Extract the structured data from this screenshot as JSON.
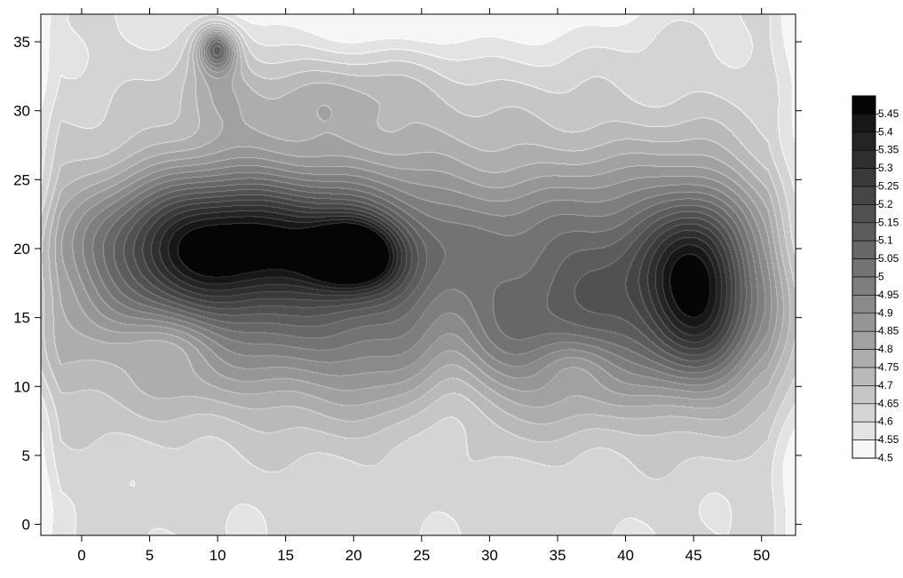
{
  "chart_data": {
    "type": "heatmap",
    "subtype": "filled-contour",
    "title": "",
    "xlabel": "",
    "ylabel": "",
    "xlim": [
      -3,
      52.5
    ],
    "ylim": [
      -0.8,
      37
    ],
    "x_ticks": [
      0,
      5,
      10,
      15,
      20,
      25,
      30,
      35,
      40,
      45,
      50
    ],
    "y_ticks": [
      0,
      5,
      10,
      15,
      20,
      25,
      30,
      35
    ],
    "x_tick_labels": [
      "0",
      "5",
      "10",
      "15",
      "20",
      "25",
      "30",
      "35",
      "40",
      "45",
      "50"
    ],
    "y_tick_labels": [
      "0",
      "5",
      "10",
      "15",
      "20",
      "25",
      "30",
      "35"
    ],
    "colormap": "grayscale (white = low, black = high)",
    "grid": false,
    "colorbar": {
      "position": "right",
      "levels": [
        5.45,
        5.4,
        5.35,
        5.3,
        5.25,
        5.2,
        5.15,
        5.1,
        5.05,
        5,
        4.95,
        4.9,
        4.85,
        4.8,
        4.75,
        4.7,
        4.65,
        4.6,
        4.55,
        4.5
      ],
      "labels": [
        "5.45",
        "5.4",
        "5.35",
        "5.3",
        "5.25",
        "5.2",
        "5.15",
        "5.1",
        "5.05",
        "5",
        "4.95",
        "4.9",
        "4.85",
        "4.8",
        "4.75",
        "4.7",
        "4.65",
        "4.6",
        "4.55",
        "4.5"
      ],
      "colors": [
        "#050505",
        "#171717",
        "#242424",
        "#2f2f2f",
        "#3a3a3a",
        "#454545",
        "#515151",
        "#5c5c5c",
        "#676767",
        "#737373",
        "#7e7e7e",
        "#8a8a8a",
        "#969696",
        "#a1a1a1",
        "#adadad",
        "#b9b9b9",
        "#c6c6c6",
        "#d4d4d4",
        "#e3e3e3",
        "#f6f6f6"
      ]
    },
    "features": [
      {
        "name": "left-plateau",
        "peak": 5.3,
        "x": 9,
        "y": 20
      },
      {
        "name": "center-peak",
        "peak": 5.45,
        "x": 20,
        "y": 19.3
      },
      {
        "name": "right-plateau",
        "peak": 5.3,
        "x": 45.5,
        "y": 17.5
      },
      {
        "name": "top-bump",
        "peak": 5.1,
        "x": 10,
        "y": 34.8
      },
      {
        "name": "low-strip-bottom",
        "min": 4.55,
        "y": -0.5
      },
      {
        "name": "low-strip-top",
        "min": 4.5,
        "y": 37
      }
    ]
  }
}
